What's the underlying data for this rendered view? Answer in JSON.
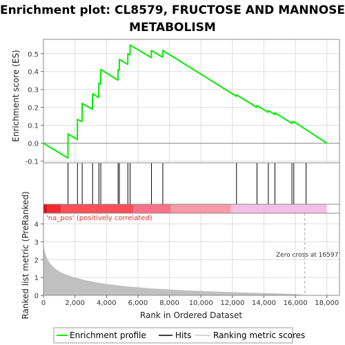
{
  "chart_data": {
    "type": "line",
    "title_line1": "Enrichment plot: CL8579, FRUCTOSE AND MANNOSE",
    "title_line2": "METABOLISM",
    "xlabel": "Rank in Ordered Dataset",
    "ylabel_top": "Enrichment score (ES)",
    "ylabel_bottom": "Ranked list metric (PreRanked)",
    "xlim": [
      0,
      18800
    ],
    "es_ylim": [
      -0.11,
      0.58
    ],
    "metric_ylim": [
      0,
      4.6
    ],
    "x_ticks": [
      0,
      2000,
      4000,
      6000,
      8000,
      10000,
      12000,
      14000,
      16000,
      18000
    ],
    "x_tick_labels": [
      "0",
      "2,000",
      "4,000",
      "6,000",
      "8,000",
      "10,000",
      "12,000",
      "14,000",
      "16,000",
      "18,000"
    ],
    "es_ticks": [
      -0.1,
      0.0,
      0.1,
      0.2,
      0.3,
      0.4,
      0.5
    ],
    "es_tick_labels": [
      "-0.1",
      "0.0",
      "0.1",
      "0.2",
      "0.3",
      "0.4",
      "0.5"
    ],
    "metric_ticks": [
      0,
      1,
      2,
      3,
      4
    ],
    "metric_tick_labels": [
      "0",
      "1",
      "2",
      "3",
      "4"
    ],
    "hits": [
      1560,
      2160,
      2460,
      3120,
      3520,
      3640,
      4740,
      4820,
      5360,
      5500,
      6860,
      7580,
      12260,
      13560,
      14280,
      14700,
      15780,
      15900,
      16680
    ],
    "es_curve": {
      "x": [
        0,
        1550,
        1560,
        2150,
        2160,
        2450,
        2460,
        3110,
        3120,
        3510,
        3520,
        3630,
        3640,
        4730,
        4740,
        4810,
        4820,
        5350,
        5360,
        5490,
        5500,
        6850,
        6860,
        7570,
        7580,
        12250,
        12260,
        13550,
        13560,
        14270,
        14280,
        14690,
        14700,
        15770,
        15780,
        15890,
        15900,
        18000
      ],
      "y": [
        0.0,
        -0.083,
        0.052,
        0.02,
        0.133,
        0.12,
        0.222,
        0.19,
        0.276,
        0.255,
        0.336,
        0.33,
        0.412,
        0.352,
        0.41,
        0.407,
        0.468,
        0.44,
        0.5,
        0.493,
        0.548,
        0.478,
        0.518,
        0.48,
        0.518,
        0.262,
        0.27,
        0.2,
        0.21,
        0.172,
        0.182,
        0.16,
        0.17,
        0.111,
        0.12,
        0.114,
        0.12,
        0.0
      ]
    },
    "metric_curve": {
      "x": [
        0,
        50,
        150,
        300,
        500,
        800,
        1200,
        1800,
        2500,
        3500,
        5000,
        7000,
        9000,
        11000,
        13000,
        15000,
        16000,
        16597,
        17000,
        18000
      ],
      "y": [
        3.0,
        2.6,
        2.25,
        1.95,
        1.7,
        1.45,
        1.25,
        1.05,
        0.88,
        0.7,
        0.52,
        0.38,
        0.28,
        0.21,
        0.15,
        0.1,
        0.07,
        0.0,
        0.0,
        0.0
      ]
    },
    "zero_cross": 16597,
    "zero_cross_label": "Zero cross at 16597",
    "pos_label": "'na_pos' (positively correlated)",
    "heat_segments": [
      {
        "from": 0,
        "to": 250,
        "color": "#d8101a"
      },
      {
        "from": 250,
        "to": 1100,
        "color": "#f02a30"
      },
      {
        "from": 1100,
        "to": 5700,
        "color": "#fb5058"
      },
      {
        "from": 5700,
        "to": 8100,
        "color": "#fb7388"
      },
      {
        "from": 8100,
        "to": 11900,
        "color": "#f99aa6"
      },
      {
        "from": 11900,
        "to": 18000,
        "color": "#f6bee6"
      }
    ],
    "colors": {
      "es_line": "#00ee00",
      "hits": "#000000",
      "metric_fill": "#c0c0c0",
      "zero_cross_line": "#aaaaaa",
      "grid": "#dddddd"
    },
    "legend": [
      {
        "label": "Enrichment profile",
        "color": "#00ee00",
        "kind": "line"
      },
      {
        "label": "Hits",
        "color": "#000000",
        "kind": "line"
      },
      {
        "label": "Ranking metric scores",
        "color": "#c8c8c8",
        "kind": "line"
      }
    ],
    "grid": true
  }
}
